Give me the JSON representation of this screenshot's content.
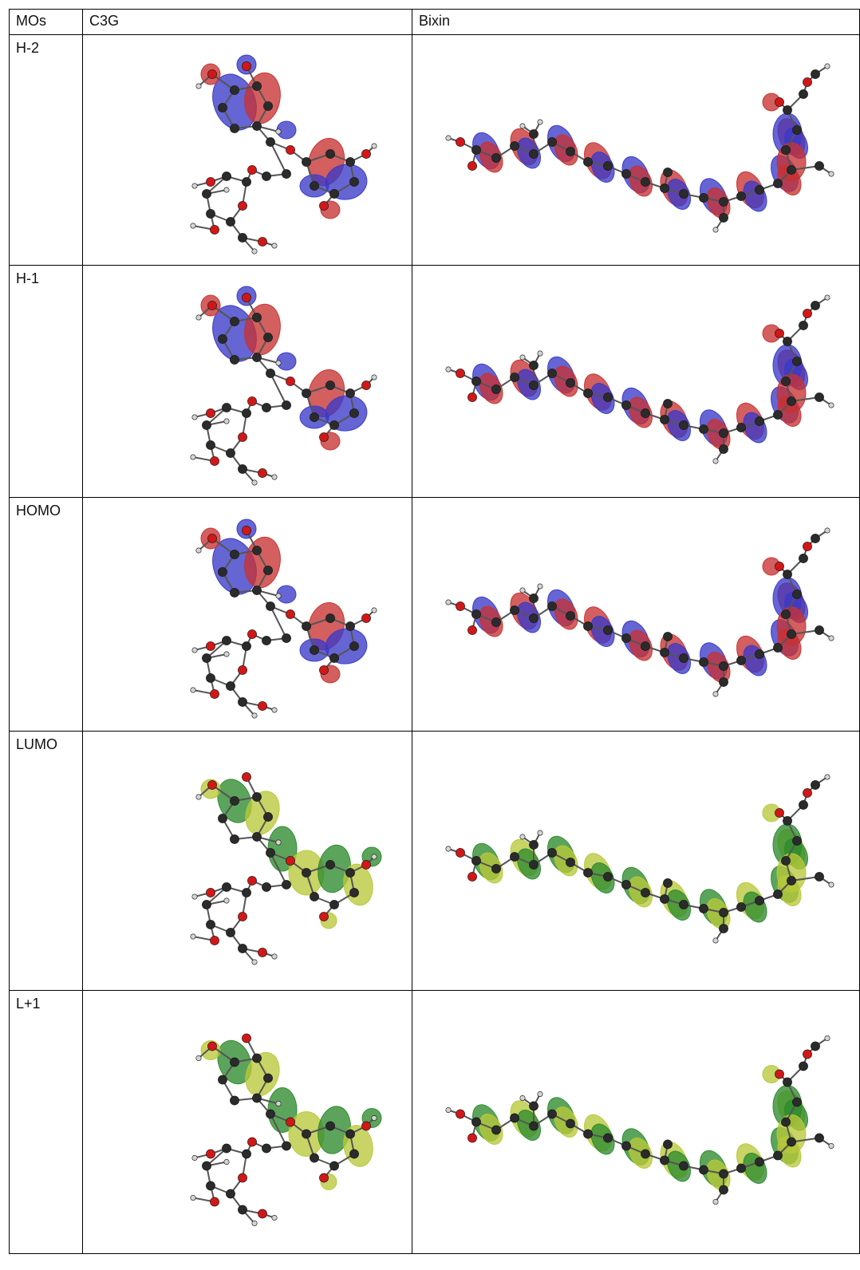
{
  "table": {
    "headers": [
      "MOs",
      "C3G",
      "Bixin"
    ],
    "rows": [
      {
        "label": "H-2",
        "colors": [
          "#3a3ac8",
          "#c83232"
        ]
      },
      {
        "label": "H-1",
        "colors": [
          "#3a3ac8",
          "#c83232"
        ]
      },
      {
        "label": "HOMO",
        "colors": [
          "#3a3ac8",
          "#c83232"
        ]
      },
      {
        "label": "LUMO",
        "colors": [
          "#2e8b2e",
          "#b8c83a"
        ]
      },
      {
        "label": "L+1",
        "colors": [
          "#2e8b2e",
          "#b8c83a"
        ]
      }
    ]
  }
}
